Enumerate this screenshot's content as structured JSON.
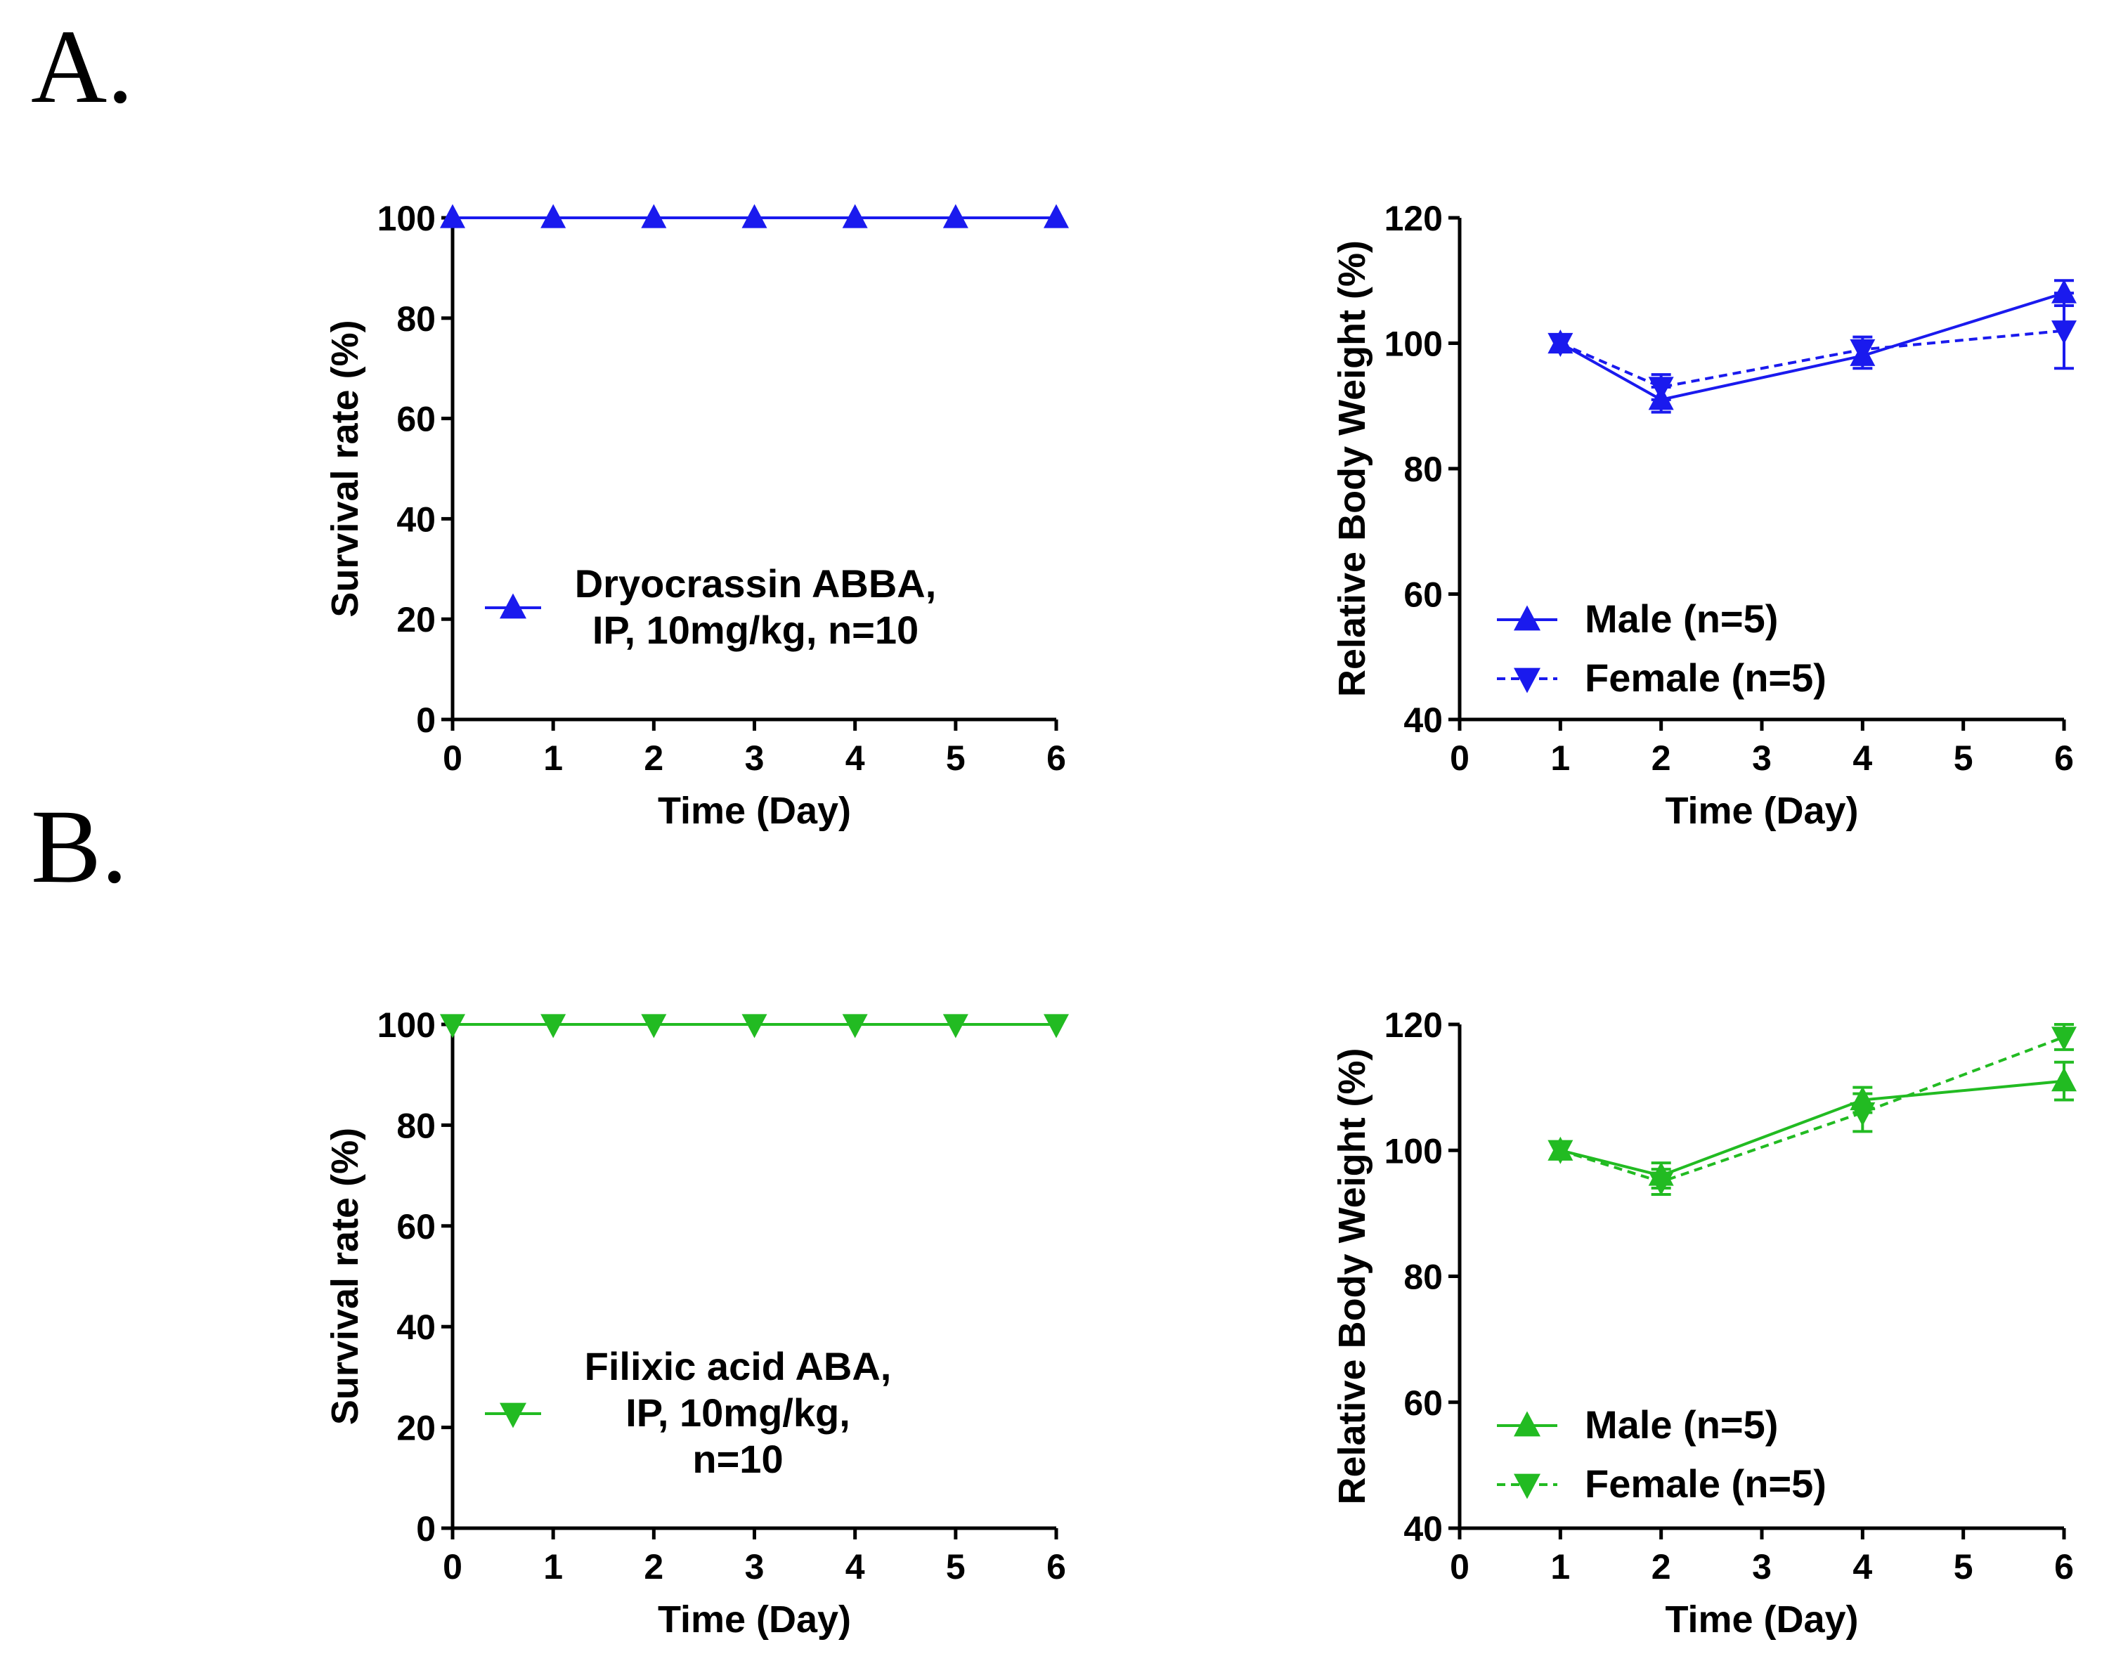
{
  "panel_labels": [
    "A.",
    "B."
  ],
  "chart_data": [
    {
      "id": "A-survival",
      "type": "line",
      "color": "#1a1aee",
      "xlabel": "Time (Day)",
      "ylabel": "Survival rate (%)",
      "xlim": [
        0,
        6
      ],
      "ylim": [
        0,
        100
      ],
      "xticks": [
        0,
        1,
        2,
        3,
        4,
        5,
        6
      ],
      "yticks": [
        0,
        20,
        40,
        60,
        80,
        100
      ],
      "legend_position": "lower-left",
      "series": [
        {
          "name": "Dryocrassin ABBA, IP, 10mg/kg, n=10",
          "legend_lines": [
            "Dryocrassin ABBA,",
            "IP, 10mg/kg, n=10"
          ],
          "marker": "triangle-up",
          "dash": "solid",
          "x": [
            0,
            1,
            2,
            3,
            4,
            5,
            6
          ],
          "y": [
            100,
            100,
            100,
            100,
            100,
            100,
            100
          ]
        }
      ]
    },
    {
      "id": "A-weight",
      "type": "line",
      "color": "#1a1aee",
      "xlabel": "Time (Day)",
      "ylabel": "Relative Body Weight (%)",
      "xlim": [
        0,
        6
      ],
      "ylim": [
        40,
        120
      ],
      "xticks": [
        0,
        1,
        2,
        3,
        4,
        5,
        6
      ],
      "yticks": [
        40,
        60,
        80,
        100,
        120
      ],
      "legend_position": "lower-left",
      "series": [
        {
          "name": "Male (n=5)",
          "legend_lines": [
            "Male (n=5)"
          ],
          "marker": "triangle-up",
          "dash": "solid",
          "x": [
            1,
            2,
            4,
            6
          ],
          "y": [
            100,
            91,
            98,
            108
          ],
          "err": [
            1,
            2,
            2,
            2
          ]
        },
        {
          "name": "Female (n=5)",
          "legend_lines": [
            "Female (n=5)"
          ],
          "marker": "triangle-down",
          "dash": "dashed",
          "x": [
            1,
            2,
            4,
            6
          ],
          "y": [
            100,
            93,
            99,
            102
          ],
          "err": [
            1,
            2,
            2,
            6
          ]
        }
      ]
    },
    {
      "id": "B-survival",
      "type": "line",
      "color": "#22bb22",
      "xlabel": "Time (Day)",
      "ylabel": "Survival rate (%)",
      "xlim": [
        0,
        6
      ],
      "ylim": [
        0,
        100
      ],
      "xticks": [
        0,
        1,
        2,
        3,
        4,
        5,
        6
      ],
      "yticks": [
        0,
        20,
        40,
        60,
        80,
        100
      ],
      "legend_position": "lower-left",
      "series": [
        {
          "name": "Filixic acid ABA, IP, 10mg/kg, n=10",
          "legend_lines": [
            "Filixic acid ABA,",
            "IP, 10mg/kg,",
            "n=10"
          ],
          "marker": "triangle-down",
          "dash": "solid",
          "x": [
            0,
            1,
            2,
            3,
            4,
            5,
            6
          ],
          "y": [
            100,
            100,
            100,
            100,
            100,
            100,
            100
          ]
        }
      ]
    },
    {
      "id": "B-weight",
      "type": "line",
      "color": "#22bb22",
      "xlabel": "Time (Day)",
      "ylabel": "Relative Body Weight (%)",
      "xlim": [
        0,
        6
      ],
      "ylim": [
        40,
        120
      ],
      "xticks": [
        0,
        1,
        2,
        3,
        4,
        5,
        6
      ],
      "yticks": [
        40,
        60,
        80,
        100,
        120
      ],
      "legend_position": "lower-left",
      "series": [
        {
          "name": "Male (n=5)",
          "legend_lines": [
            "Male (n=5)"
          ],
          "marker": "triangle-up",
          "dash": "solid",
          "x": [
            1,
            2,
            4,
            6
          ],
          "y": [
            100,
            96,
            108,
            111
          ],
          "err": [
            1,
            2,
            2,
            3
          ]
        },
        {
          "name": "Female (n=5)",
          "legend_lines": [
            "Female (n=5)"
          ],
          "marker": "triangle-down",
          "dash": "dashed",
          "x": [
            1,
            2,
            4,
            6
          ],
          "y": [
            100,
            95,
            106,
            118
          ],
          "err": [
            1,
            2,
            3,
            2
          ]
        }
      ]
    }
  ]
}
